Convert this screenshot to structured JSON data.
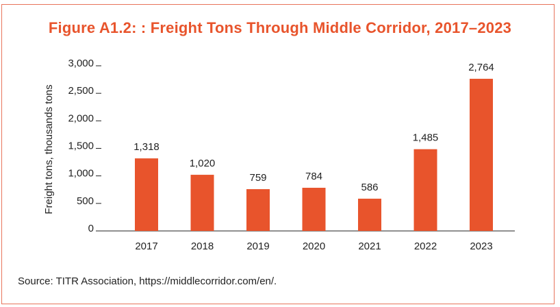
{
  "figure": {
    "title": "Figure A1.2: : Freight Tons Through Middle Corridor, 2017–2023",
    "source": "Source: TITR Association, https://middlecorridor.com/en/."
  },
  "colors": {
    "bar": "#e8542c",
    "border": "#e8735a",
    "title": "#e8542c"
  },
  "chart_data": {
    "type": "bar",
    "title": "Figure A1.2: : Freight Tons Through Middle Corridor, 2017–2023",
    "xlabel": "",
    "ylabel": "Freight tons, thousands tons",
    "categories": [
      "2017",
      "2018",
      "2019",
      "2020",
      "2021",
      "2022",
      "2023"
    ],
    "values": [
      1318,
      1020,
      759,
      784,
      586,
      1485,
      2764
    ],
    "data_labels": [
      "1,318",
      "1,020",
      "759",
      "784",
      "586",
      "1,485",
      "2,764"
    ],
    "yticks": [
      0,
      500,
      1000,
      1500,
      2000,
      2500,
      3000
    ],
    "ytick_labels": [
      "0",
      "500",
      "1,000",
      "1,500",
      "2,000",
      "2,500",
      "3,000"
    ],
    "ylim": [
      0,
      3000
    ],
    "grid": false,
    "legend": "none"
  }
}
